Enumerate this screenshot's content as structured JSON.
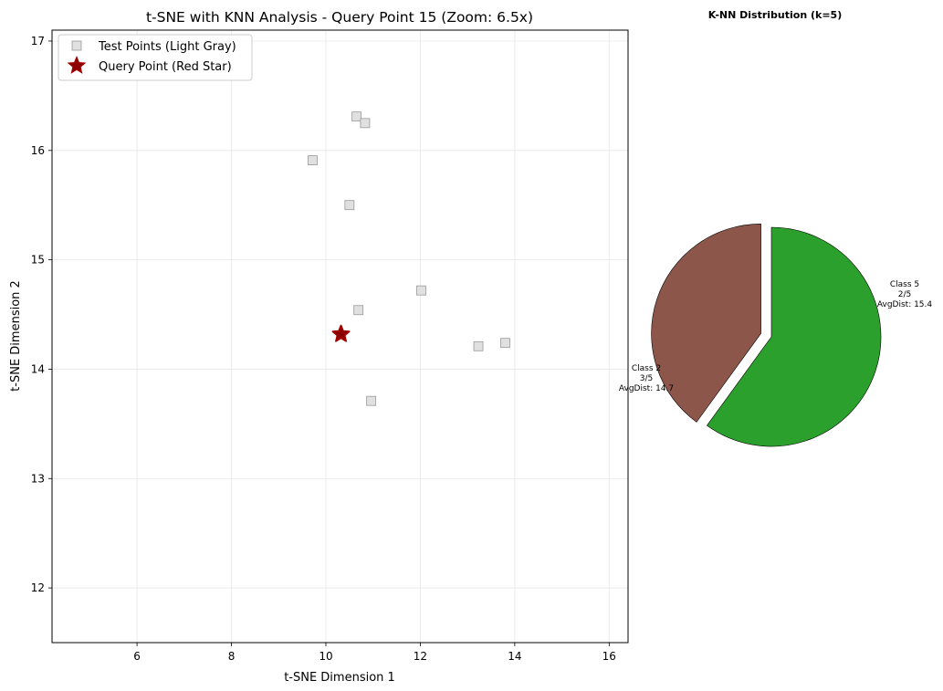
{
  "chart_data": [
    {
      "type": "scatter",
      "title": "t-SNE with KNN Analysis - Query Point 15 (Zoom: 6.5x)",
      "xlabel": "t-SNE Dimension 1",
      "ylabel": "t-SNE Dimension 2",
      "xlim": [
        4.2,
        16.4
      ],
      "ylim": [
        11.5,
        17.1
      ],
      "xticks": [
        "6",
        "8",
        "10",
        "12",
        "14",
        "16"
      ],
      "yticks": [
        "12",
        "13",
        "14",
        "15",
        "16",
        "17"
      ],
      "grid": true,
      "legend_position": "top-left",
      "series": [
        {
          "name": "Test Points (Light Gray)",
          "marker": "square",
          "color": "#e0e0e0",
          "edge_color": "#999999",
          "points": [
            {
              "x": 10.65,
              "y": 16.31
            },
            {
              "x": 10.83,
              "y": 16.25
            },
            {
              "x": 9.72,
              "y": 15.91
            },
            {
              "x": 10.5,
              "y": 15.5
            },
            {
              "x": 12.02,
              "y": 14.72
            },
            {
              "x": 10.69,
              "y": 14.54
            },
            {
              "x": 13.23,
              "y": 14.21
            },
            {
              "x": 13.8,
              "y": 14.24
            },
            {
              "x": 10.96,
              "y": 13.71
            }
          ]
        },
        {
          "name": "Query Point (Red Star)",
          "marker": "star",
          "color": "#8b0000",
          "edge_color": "#a00000",
          "points": [
            {
              "x": 10.32,
              "y": 14.32
            }
          ]
        }
      ]
    },
    {
      "type": "pie",
      "title": "K-NN Distribution (k=5)",
      "slices": [
        {
          "class": "Class 5",
          "count": "2/5",
          "avg": "AvgDist: 15.4",
          "value": 2,
          "color": "#8c564b",
          "explode": true
        },
        {
          "class": "Class 2",
          "count": "3/5",
          "avg": "AvgDist: 14.7",
          "value": 3,
          "color": "#2ca02c",
          "explode": false
        }
      ]
    }
  ]
}
